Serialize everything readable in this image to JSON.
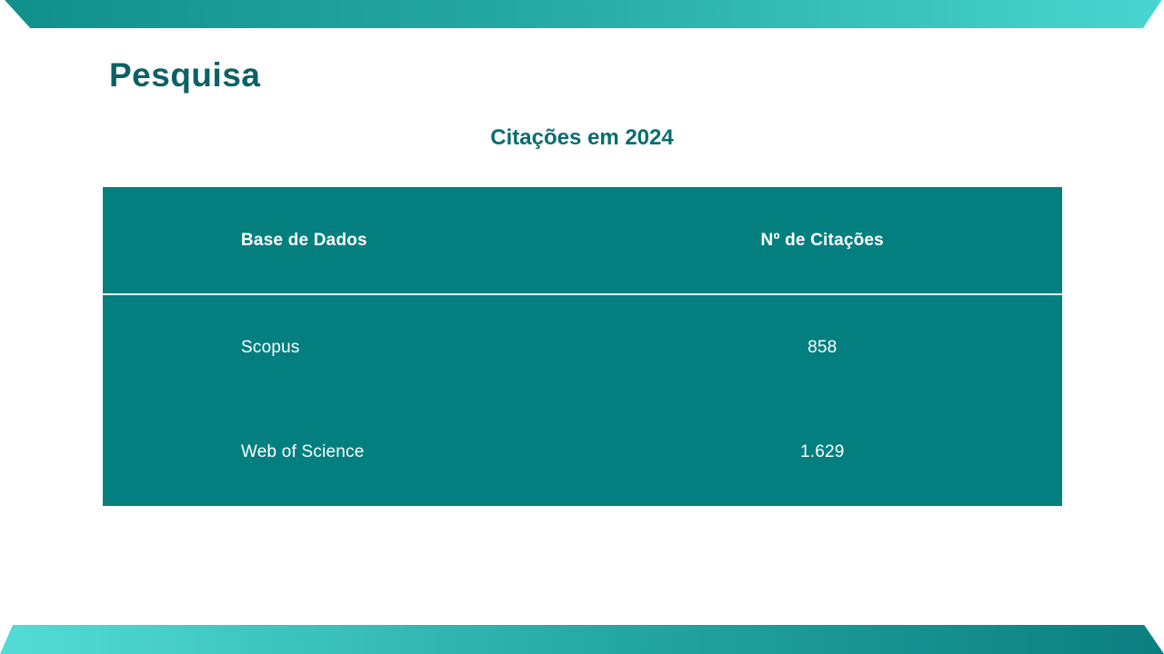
{
  "slide": {
    "title": "Pesquisa",
    "table_title": "Citações em 2024"
  },
  "table": {
    "col_headers": [
      "Base de Dados",
      "Nº de Citações"
    ],
    "rows": [
      {
        "database": "Scopus",
        "citations": "858"
      },
      {
        "database": "Web of Science",
        "citations": "1.629"
      }
    ]
  },
  "chart_data": {
    "type": "table",
    "title": "Citações em 2024",
    "columns": [
      "Base de Dados",
      "Nº de Citações"
    ],
    "rows": [
      [
        "Scopus",
        "858"
      ],
      [
        "Web of Science",
        "1.629"
      ]
    ],
    "numeric_values": [
      858,
      1629
    ]
  },
  "colors": {
    "table_background": "#047f80",
    "title_text": "#0d6064",
    "subtitle_text": "#086d71",
    "table_text": "#ffffff",
    "header_divider": "#e9f6f6",
    "banner_dark_teal": "#11908b",
    "banner_light_teal": "#53dcd6"
  }
}
